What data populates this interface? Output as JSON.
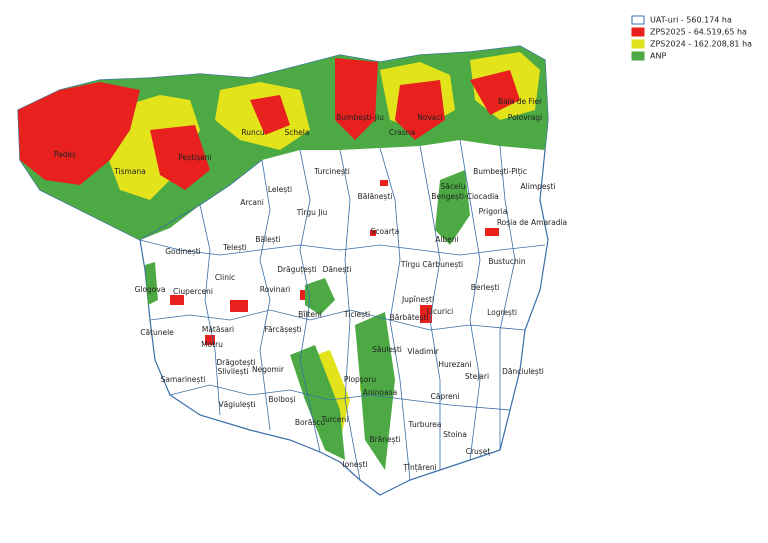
{
  "legend": [
    {
      "label": "UAT-uri - 560.174 ha",
      "color": "#ffffff",
      "border": "#3a6fa8"
    },
    {
      "label": "ZPS2025 - 64.519,65 ha",
      "color": "#e8201e",
      "border": "#e8201e"
    },
    {
      "label": "ZPS2024 - 162.208,81 ha",
      "color": "#e3e31c",
      "border": "#e3e31c"
    },
    {
      "label": "ANP",
      "color": "#4da944",
      "border": "#4da944"
    }
  ],
  "places": [
    "Padeș",
    "Tismana",
    "Peștișani",
    "Runcu",
    "Schela",
    "Bumbești-Jiu",
    "Crasna",
    "Novaci",
    "Baia de Fier",
    "Polovragi",
    "Turcinești",
    "Lelești",
    "Arcani",
    "Bălănești",
    "Săcelu",
    "Bumbești-Pițic",
    "Alimpești",
    "Bengești-Ciocadia",
    "Prigoria",
    "Roșia de Amaradia",
    "Tîrgu Jiu",
    "Scoarța",
    "Albeni",
    "Godinești",
    "Telești",
    "Bălești",
    "Bustuchin",
    "Drăguțești",
    "Dănești",
    "Tîrgu Cărbunești",
    "Clinic",
    "Glogova",
    "Ciuperceni",
    "Rovinari",
    "Berlești",
    "Jupînești",
    "Licurici",
    "Logrești",
    "Bîlteni",
    "Ticlești",
    "Bărbătești",
    "Cătunele",
    "Mătăsari",
    "Fărcășești",
    "Săulești",
    "Vladimir",
    "Motru",
    "Drăgotești",
    "Slivilești",
    "Negomir",
    "Hurezani",
    "Stejari",
    "Dănciulești",
    "Samarinești",
    "Plopșoru",
    "Aninoasa",
    "Bolboși",
    "Văgiulești",
    "Căpreni",
    "Borăscu",
    "Turceni",
    "Turburea",
    "Brănești",
    "Stoina",
    "Crușeț",
    "Ionești",
    "Țînțăreni"
  ]
}
